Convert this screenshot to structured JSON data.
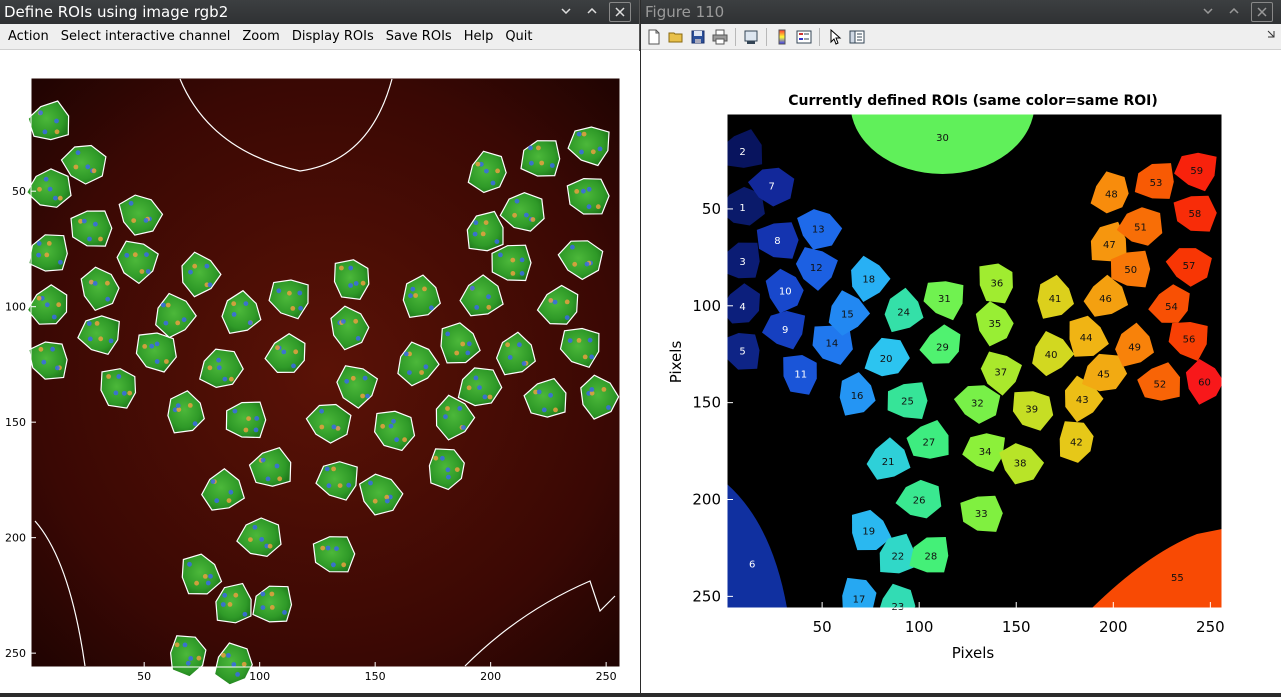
{
  "left_window": {
    "title": "Define ROIs using image rgb2",
    "menu": [
      {
        "label": "Action",
        "name": "menu-action"
      },
      {
        "label": "Select interactive channel",
        "name": "menu-select-interactive-channel"
      },
      {
        "label": "Zoom",
        "name": "menu-zoom"
      },
      {
        "label": "Display ROIs",
        "name": "menu-display-rois"
      },
      {
        "label": "Save ROIs",
        "name": "menu-save-rois"
      },
      {
        "label": "Help",
        "name": "menu-help"
      },
      {
        "label": "Quit",
        "name": "menu-quit"
      }
    ],
    "axes": {
      "x_ticks": [
        "50",
        "100",
        "150",
        "200",
        "250"
      ],
      "y_ticks": [
        "50",
        "100",
        "150",
        "200",
        "250"
      ]
    }
  },
  "right_window": {
    "title": "Figure 110",
    "toolbar_icons": [
      "new-file-icon",
      "open-folder-icon",
      "save-icon",
      "print-icon",
      "print-preview-icon",
      "colorbar-icon",
      "legend-icon",
      "pointer-icon",
      "property-editor-icon"
    ],
    "plot": {
      "title": "Currently defined ROIs (same color=same ROI)",
      "xlabel": "Pixels",
      "ylabel": "Pixels",
      "x_ticks": [
        "50",
        "100",
        "150",
        "200",
        "250"
      ],
      "y_ticks": [
        "50",
        "100",
        "150",
        "200",
        "250"
      ]
    }
  },
  "chart_data": {
    "type": "heatmap",
    "title": "Currently defined ROIs (same color=same ROI)",
    "xlabel": "Pixels",
    "ylabel": "Pixels",
    "xlim": [
      1,
      256
    ],
    "ylim": [
      1,
      256
    ],
    "rois": [
      {
        "id": 1,
        "x": 9,
        "y": 49,
        "color": "#0a1a6a"
      },
      {
        "id": 2,
        "x": 9,
        "y": 20,
        "color": "#08145e"
      },
      {
        "id": 3,
        "x": 9,
        "y": 77,
        "color": "#0b1c74"
      },
      {
        "id": 4,
        "x": 9,
        "y": 100,
        "color": "#0c1f7c"
      },
      {
        "id": 5,
        "x": 9,
        "y": 123,
        "color": "#0e2486"
      },
      {
        "id": 6,
        "x": 14,
        "y": 233,
        "color": "#1030a0"
      },
      {
        "id": 7,
        "x": 24,
        "y": 38,
        "color": "#12289a"
      },
      {
        "id": 8,
        "x": 27,
        "y": 66,
        "color": "#1434b0"
      },
      {
        "id": 9,
        "x": 31,
        "y": 112,
        "color": "#1640c0"
      },
      {
        "id": 10,
        "x": 31,
        "y": 92,
        "color": "#1848cc"
      },
      {
        "id": 11,
        "x": 39,
        "y": 135,
        "color": "#1a55d8"
      },
      {
        "id": 12,
        "x": 47,
        "y": 80,
        "color": "#1c60e2"
      },
      {
        "id": 13,
        "x": 48,
        "y": 60,
        "color": "#1e6aea"
      },
      {
        "id": 14,
        "x": 55,
        "y": 119,
        "color": "#2078ee"
      },
      {
        "id": 15,
        "x": 63,
        "y": 104,
        "color": "#2288f2"
      },
      {
        "id": 16,
        "x": 68,
        "y": 146,
        "color": "#2495f4"
      },
      {
        "id": 17,
        "x": 69,
        "y": 251,
        "color": "#26a8f2"
      },
      {
        "id": 18,
        "x": 74,
        "y": 86,
        "color": "#28b0f4"
      },
      {
        "id": 19,
        "x": 74,
        "y": 216,
        "color": "#2ab8f0"
      },
      {
        "id": 20,
        "x": 83,
        "y": 127,
        "color": "#2cc4f0"
      },
      {
        "id": 21,
        "x": 84,
        "y": 180,
        "color": "#2ed0d8"
      },
      {
        "id": 22,
        "x": 89,
        "y": 229,
        "color": "#30d8c8"
      },
      {
        "id": 23,
        "x": 89,
        "y": 255,
        "color": "#32dcb4"
      },
      {
        "id": 24,
        "x": 92,
        "y": 103,
        "color": "#34e0a8"
      },
      {
        "id": 25,
        "x": 94,
        "y": 149,
        "color": "#36e498"
      },
      {
        "id": 26,
        "x": 100,
        "y": 200,
        "color": "#3ae890"
      },
      {
        "id": 27,
        "x": 105,
        "y": 170,
        "color": "#3eec80"
      },
      {
        "id": 28,
        "x": 106,
        "y": 229,
        "color": "#44f078"
      },
      {
        "id": 29,
        "x": 112,
        "y": 121,
        "color": "#50f270"
      },
      {
        "id": 30,
        "x": 112,
        "y": 13,
        "color": "#60f05a"
      },
      {
        "id": 31,
        "x": 113,
        "y": 96,
        "color": "#70f250"
      },
      {
        "id": 32,
        "x": 130,
        "y": 150,
        "color": "#78f048"
      },
      {
        "id": 33,
        "x": 132,
        "y": 207,
        "color": "#80f040"
      },
      {
        "id": 34,
        "x": 134,
        "y": 175,
        "color": "#8cf03a"
      },
      {
        "id": 35,
        "x": 139,
        "y": 109,
        "color": "#98ee34"
      },
      {
        "id": 36,
        "x": 140,
        "y": 88,
        "color": "#a0ec30"
      },
      {
        "id": 37,
        "x": 142,
        "y": 134,
        "color": "#aae82c"
      },
      {
        "id": 38,
        "x": 152,
        "y": 181,
        "color": "#b8e428"
      },
      {
        "id": 39,
        "x": 158,
        "y": 153,
        "color": "#c6de24"
      },
      {
        "id": 40,
        "x": 168,
        "y": 125,
        "color": "#d2d820"
      },
      {
        "id": 41,
        "x": 170,
        "y": 96,
        "color": "#dcd01c"
      },
      {
        "id": 42,
        "x": 181,
        "y": 170,
        "color": "#e6c818"
      },
      {
        "id": 43,
        "x": 184,
        "y": 148,
        "color": "#ecbe16"
      },
      {
        "id": 44,
        "x": 186,
        "y": 116,
        "color": "#f0b414"
      },
      {
        "id": 45,
        "x": 195,
        "y": 135,
        "color": "#f2aa12"
      },
      {
        "id": 46,
        "x": 196,
        "y": 96,
        "color": "#f4a010"
      },
      {
        "id": 47,
        "x": 198,
        "y": 68,
        "color": "#f6960e"
      },
      {
        "id": 48,
        "x": 199,
        "y": 42,
        "color": "#f88c0c"
      },
      {
        "id": 49,
        "x": 211,
        "y": 121,
        "color": "#f8820a"
      },
      {
        "id": 50,
        "x": 209,
        "y": 81,
        "color": "#f87808"
      },
      {
        "id": 51,
        "x": 214,
        "y": 59,
        "color": "#f86e06"
      },
      {
        "id": 52,
        "x": 224,
        "y": 140,
        "color": "#f86406"
      },
      {
        "id": 53,
        "x": 222,
        "y": 36,
        "color": "#f85a04"
      },
      {
        "id": 54,
        "x": 230,
        "y": 100,
        "color": "#f85004"
      },
      {
        "id": 55,
        "x": 233,
        "y": 240,
        "color": "#f84a04"
      },
      {
        "id": 56,
        "x": 239,
        "y": 117,
        "color": "#f84004"
      },
      {
        "id": 57,
        "x": 239,
        "y": 79,
        "color": "#f83604"
      },
      {
        "id": 58,
        "x": 242,
        "y": 52,
        "color": "#f82c08"
      },
      {
        "id": 59,
        "x": 243,
        "y": 30,
        "color": "#f8220c"
      },
      {
        "id": 60,
        "x": 247,
        "y": 139,
        "color": "#f8181a"
      }
    ]
  }
}
